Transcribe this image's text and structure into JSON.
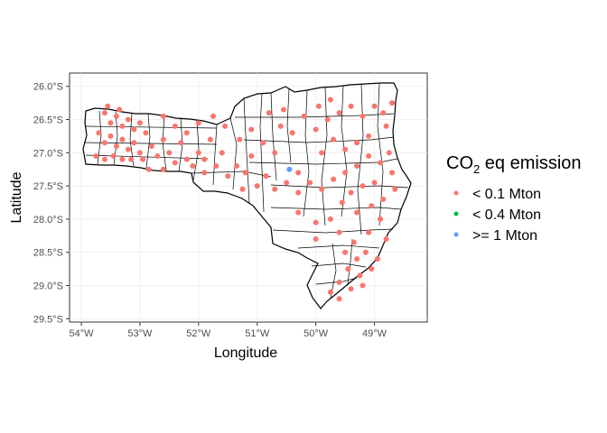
{
  "chart_data": {
    "type": "scatter",
    "map_region": "Santa Catarina municipalities",
    "xlabel": "Longitude",
    "ylabel": "Latitude",
    "xlim": [
      -54.2,
      -48.1
    ],
    "ylim": [
      -29.55,
      -25.8
    ],
    "x_ticks": [
      -54,
      -53,
      -52,
      -51,
      -50,
      -49
    ],
    "x_tick_labels": [
      "54°W",
      "53°W",
      "52°W",
      "51°W",
      "50°W",
      "49°W"
    ],
    "y_ticks": [
      -26,
      -26.5,
      -27,
      -27.5,
      -28,
      -28.5,
      -29,
      -29.5
    ],
    "y_tick_labels": [
      "26.0°S",
      "26.5°S",
      "27.0°S",
      "27.5°S",
      "28.0°S",
      "28.5°S",
      "29.0°S",
      "29.5°S"
    ],
    "grid": true,
    "legend": {
      "title_main": "CO",
      "title_sub": "2",
      "title_rest": " eq emission",
      "placement": "right",
      "entries": [
        {
          "label": "< 0.1 Mton",
          "color": "#F8766D"
        },
        {
          "label": "< 0.4 Mton",
          "color": "#00BA38"
        },
        {
          "label": ">= 1 Mton",
          "color": "#619CFF"
        }
      ]
    },
    "series": [
      {
        "category": "< 0.1 Mton",
        "points": [
          [
            -53.6,
            -26.4
          ],
          [
            -53.5,
            -26.55
          ],
          [
            -53.4,
            -26.45
          ],
          [
            -53.3,
            -26.6
          ],
          [
            -53.2,
            -26.5
          ],
          [
            -53.1,
            -26.65
          ],
          [
            -53.0,
            -26.55
          ],
          [
            -52.9,
            -26.7
          ],
          [
            -53.7,
            -26.7
          ],
          [
            -53.6,
            -26.85
          ],
          [
            -53.5,
            -26.75
          ],
          [
            -53.4,
            -26.9
          ],
          [
            -53.3,
            -26.8
          ],
          [
            -53.2,
            -26.95
          ],
          [
            -53.1,
            -26.85
          ],
          [
            -53.0,
            -27.0
          ],
          [
            -53.75,
            -27.05
          ],
          [
            -53.6,
            -27.1
          ],
          [
            -53.45,
            -27.05
          ],
          [
            -53.3,
            -27.1
          ],
          [
            -53.15,
            -27.1
          ],
          [
            -52.95,
            -27.1
          ],
          [
            -52.8,
            -26.9
          ],
          [
            -52.7,
            -27.05
          ],
          [
            -52.6,
            -26.8
          ],
          [
            -52.5,
            -27.0
          ],
          [
            -52.4,
            -27.15
          ],
          [
            -52.3,
            -26.85
          ],
          [
            -52.2,
            -27.1
          ],
          [
            -52.1,
            -27.2
          ],
          [
            -52.0,
            -27.0
          ],
          [
            -51.9,
            -27.3
          ],
          [
            -52.4,
            -26.6
          ],
          [
            -52.2,
            -26.7
          ],
          [
            -52.0,
            -26.55
          ],
          [
            -51.8,
            -26.8
          ],
          [
            -51.9,
            -27.1
          ],
          [
            -51.7,
            -27.2
          ],
          [
            -51.5,
            -27.35
          ],
          [
            -51.6,
            -27.0
          ],
          [
            -51.35,
            -27.2
          ],
          [
            -51.2,
            -27.3
          ],
          [
            -51.1,
            -27.05
          ],
          [
            -51.3,
            -26.8
          ],
          [
            -51.1,
            -26.65
          ],
          [
            -50.9,
            -26.85
          ],
          [
            -50.7,
            -27.0
          ],
          [
            -50.85,
            -27.35
          ],
          [
            -51.0,
            -27.5
          ],
          [
            -50.7,
            -27.55
          ],
          [
            -50.5,
            -27.45
          ],
          [
            -50.3,
            -27.6
          ],
          [
            -50.3,
            -27.3
          ],
          [
            -50.1,
            -27.45
          ],
          [
            -49.9,
            -27.55
          ],
          [
            -49.7,
            -27.4
          ],
          [
            -50.6,
            -26.6
          ],
          [
            -50.4,
            -26.7
          ],
          [
            -50.2,
            -26.45
          ],
          [
            -50.0,
            -26.65
          ],
          [
            -49.8,
            -26.5
          ],
          [
            -49.6,
            -26.4
          ],
          [
            -49.4,
            -26.3
          ],
          [
            -49.2,
            -26.45
          ],
          [
            -49.0,
            -26.3
          ],
          [
            -48.85,
            -26.4
          ],
          [
            -48.7,
            -26.25
          ],
          [
            -48.8,
            -26.6
          ],
          [
            -49.1,
            -26.75
          ],
          [
            -49.3,
            -26.85
          ],
          [
            -49.5,
            -26.95
          ],
          [
            -49.7,
            -26.8
          ],
          [
            -49.9,
            -27.0
          ],
          [
            -49.1,
            -27.05
          ],
          [
            -48.9,
            -27.15
          ],
          [
            -48.75,
            -27.0
          ],
          [
            -49.3,
            -27.2
          ],
          [
            -49.5,
            -27.3
          ],
          [
            -49.4,
            -27.6
          ],
          [
            -49.2,
            -27.5
          ],
          [
            -49.0,
            -27.45
          ],
          [
            -48.7,
            -27.3
          ],
          [
            -48.65,
            -27.55
          ],
          [
            -48.85,
            -27.7
          ],
          [
            -49.05,
            -27.8
          ],
          [
            -49.3,
            -27.9
          ],
          [
            -49.55,
            -27.75
          ],
          [
            -49.75,
            -28.0
          ],
          [
            -50.0,
            -28.05
          ],
          [
            -50.3,
            -27.9
          ],
          [
            -50.0,
            -28.3
          ],
          [
            -49.6,
            -28.2
          ],
          [
            -49.35,
            -28.35
          ],
          [
            -49.1,
            -28.2
          ],
          [
            -48.9,
            -28.0
          ],
          [
            -48.8,
            -28.3
          ],
          [
            -49.5,
            -28.5
          ],
          [
            -49.3,
            -28.6
          ],
          [
            -49.15,
            -28.5
          ],
          [
            -48.95,
            -28.6
          ],
          [
            -49.45,
            -28.75
          ],
          [
            -49.25,
            -28.85
          ],
          [
            -49.05,
            -28.75
          ],
          [
            -49.6,
            -28.95
          ],
          [
            -49.4,
            -29.05
          ],
          [
            -49.2,
            -29.0
          ],
          [
            -49.75,
            -29.1
          ],
          [
            -49.6,
            -29.2
          ],
          [
            -52.6,
            -27.25
          ],
          [
            -52.85,
            -27.25
          ],
          [
            -51.55,
            -26.6
          ],
          [
            -51.75,
            -26.45
          ],
          [
            -53.55,
            -26.3
          ],
          [
            -53.35,
            -26.35
          ],
          [
            -52.6,
            -26.45
          ],
          [
            -50.8,
            -26.4
          ],
          [
            -50.55,
            -26.35
          ],
          [
            -49.95,
            -26.3
          ],
          [
            -49.75,
            -26.2
          ],
          [
            -51.25,
            -27.55
          ]
        ]
      },
      {
        "category": ">= 1 Mton",
        "points": [
          [
            -50.45,
            -27.25
          ]
        ]
      }
    ]
  }
}
